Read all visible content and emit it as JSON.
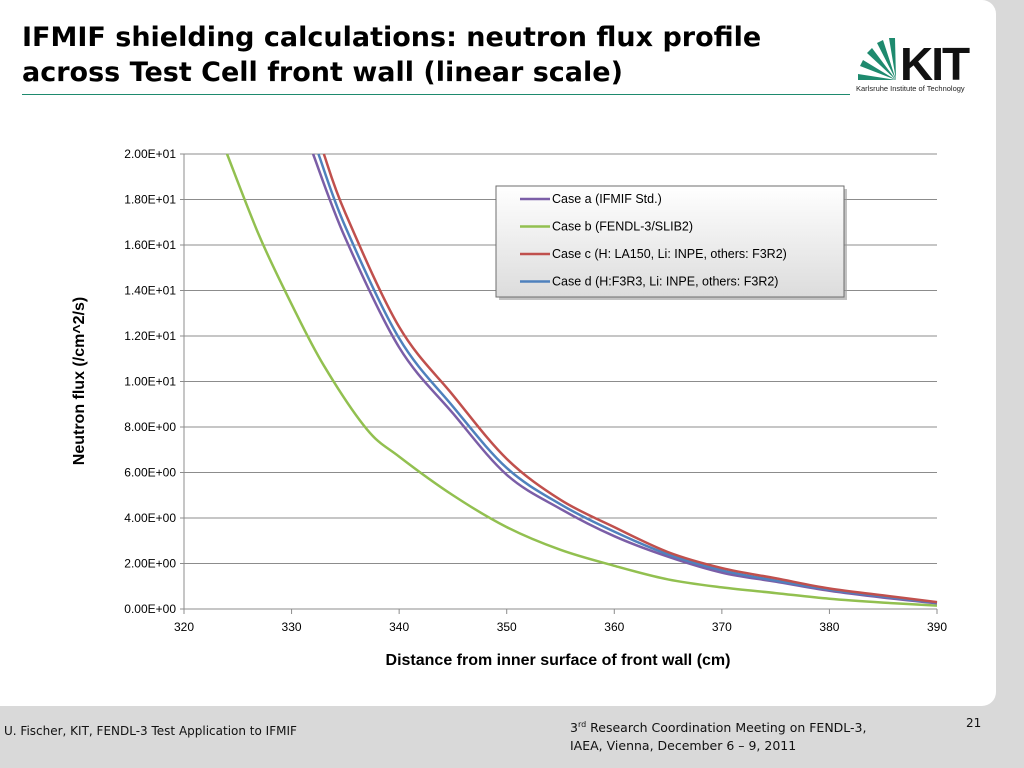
{
  "slide": {
    "title_line1": "IFMIF shielding calculations: neutron flux profile",
    "title_line2": "across Test Cell front wall (linear scale)",
    "logo_text": "KIT",
    "logo_subtitle": "Karlsruhe Institute of Technology",
    "accent_color": "#1e8a6e"
  },
  "footer": {
    "author": "U. Fischer, KIT, FENDL-3 Test Application to IFMIF",
    "meeting_ord": "3",
    "meeting_sup": "rd",
    "meeting_line1_rest": " Research Coordination Meeting on FENDL-3,",
    "meeting_line2": "IAEA, Vienna, December 6 – 9, 2011",
    "page": "21"
  },
  "chart_data": {
    "type": "line",
    "xlabel": "Distance from inner surface of front wall (cm)",
    "ylabel": "Neutron flux (/cm^2/s)",
    "xlim": [
      320,
      390
    ],
    "ylim": [
      0,
      20
    ],
    "xticks": [
      320,
      330,
      340,
      350,
      360,
      370,
      380,
      390
    ],
    "yticks": [
      "0.00E+00",
      "2.00E+00",
      "4.00E+00",
      "6.00E+00",
      "8.00E+00",
      "1.00E+01",
      "1.20E+01",
      "1.40E+01",
      "1.60E+01",
      "1.80E+01",
      "2.00E+01"
    ],
    "grid": "horizontal",
    "legend_position": "top-right",
    "series": [
      {
        "name": "Case a (IFMIF Std.)",
        "color": "#7b5ea7",
        "x": [
          332,
          335,
          340,
          345,
          350,
          355,
          360,
          365,
          370,
          375,
          380,
          385,
          390
        ],
        "y": [
          20.0,
          16.3,
          11.5,
          8.6,
          5.9,
          4.4,
          3.2,
          2.3,
          1.6,
          1.2,
          0.8,
          0.5,
          0.25
        ]
      },
      {
        "name": "Case b (FENDL-3/SLIB2)",
        "color": "#92c050",
        "x": [
          324,
          327,
          330,
          333,
          337,
          340,
          345,
          350,
          355,
          360,
          365,
          370,
          375,
          380,
          385,
          390
        ],
        "y": [
          20.0,
          16.4,
          13.4,
          10.7,
          7.9,
          6.7,
          5.0,
          3.6,
          2.6,
          1.9,
          1.3,
          0.95,
          0.7,
          0.45,
          0.28,
          0.15
        ]
      },
      {
        "name": "Case c (H: LA150, Li: INPE, others: F3R2)",
        "color": "#c0504d",
        "x": [
          333,
          335,
          340,
          345,
          350,
          355,
          360,
          365,
          370,
          375,
          380,
          385,
          390
        ],
        "y": [
          20.0,
          17.4,
          12.4,
          9.4,
          6.6,
          4.8,
          3.6,
          2.5,
          1.8,
          1.35,
          0.9,
          0.6,
          0.3
        ]
      },
      {
        "name": "Case d (H:F3R3, Li: INPE, others: F3R2)",
        "color": "#4f81bd",
        "x": [
          332.5,
          335,
          340,
          345,
          350,
          355,
          360,
          365,
          370,
          375,
          380,
          385,
          390
        ],
        "y": [
          20.0,
          16.8,
          11.9,
          8.9,
          6.2,
          4.6,
          3.4,
          2.4,
          1.7,
          1.25,
          0.85,
          0.55,
          0.28
        ]
      }
    ]
  }
}
